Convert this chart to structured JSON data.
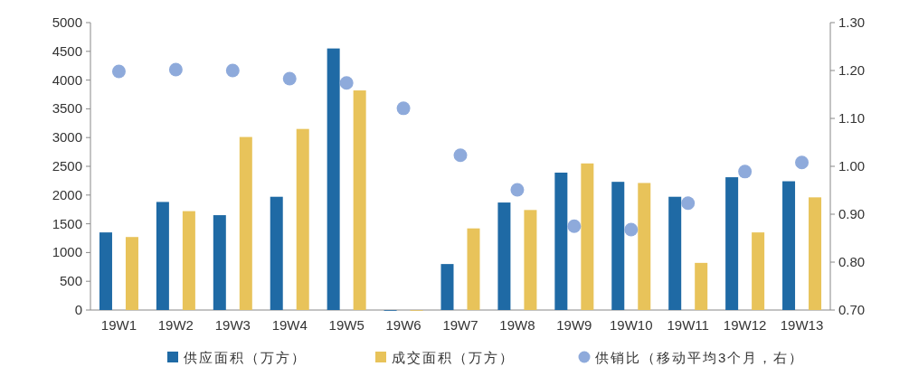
{
  "chart_data": {
    "type": "bar",
    "categories": [
      "19W1",
      "19W2",
      "19W3",
      "19W4",
      "19W5",
      "19W6",
      "19W7",
      "19W8",
      "19W9",
      "19W10",
      "19W11",
      "19W12",
      "19W13"
    ],
    "series": [
      {
        "name": "供应面积（万方）",
        "color": "#1f6aa5",
        "values": [
          1350,
          1880,
          1650,
          1970,
          4550,
          0,
          800,
          1870,
          2390,
          2230,
          1970,
          2310,
          2240
        ]
      },
      {
        "name": "成交面积（万方）",
        "color": "#e8c35a",
        "values": [
          1270,
          1720,
          3010,
          3150,
          3820,
          0,
          1420,
          1740,
          2550,
          2210,
          820,
          1350,
          1960
        ]
      },
      {
        "name": "供销比（移动平均3个月，右）",
        "color": "#8eaadb",
        "type": "scatter",
        "axis": "y2",
        "marker": "circle",
        "values": [
          1.198,
          1.202,
          1.2,
          1.183,
          1.174,
          1.121,
          1.023,
          0.951,
          0.875,
          0.868,
          0.923,
          0.989,
          1.008
        ]
      }
    ],
    "ylim": [
      0,
      5000
    ],
    "yticks": [
      0,
      500,
      1000,
      1500,
      2000,
      2500,
      3000,
      3500,
      4000,
      4500,
      5000
    ],
    "y2lim": [
      0.7,
      1.3
    ],
    "y2ticks": [
      {
        "value": 0.7,
        "label": "0.70"
      },
      {
        "value": 0.8,
        "label": "0.80"
      },
      {
        "value": 0.9,
        "label": "0.90"
      },
      {
        "value": 1.0,
        "label": "1.00"
      },
      {
        "value": 1.1,
        "label": "1.10"
      },
      {
        "value": 1.2,
        "label": "1.20"
      },
      {
        "value": 1.3,
        "label": "1.30"
      }
    ],
    "legend": "bottom"
  }
}
